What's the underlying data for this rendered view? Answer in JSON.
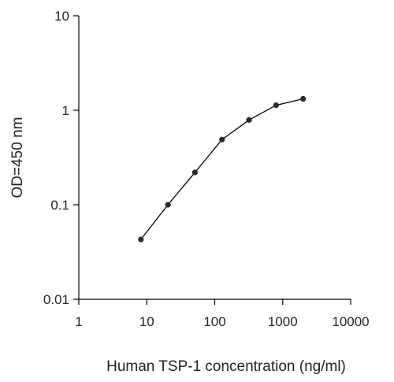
{
  "chart_data": {
    "type": "line",
    "xlabel": "Human TSP-1 concentration (ng/ml)",
    "ylabel": "OD=450 nm",
    "xscale": "log",
    "yscale": "log",
    "xlim": [
      1,
      10000
    ],
    "ylim": [
      0.01,
      10
    ],
    "x_ticks": [
      {
        "value": 1,
        "label": "1"
      },
      {
        "value": 10,
        "label": "10"
      },
      {
        "value": 100,
        "label": "100"
      },
      {
        "value": 1000,
        "label": "1000"
      },
      {
        "value": 10000,
        "label": "10000"
      }
    ],
    "y_ticks": [
      {
        "value": 0.01,
        "label": "0.01"
      },
      {
        "value": 0.1,
        "label": "0.1"
      },
      {
        "value": 1,
        "label": "1"
      },
      {
        "value": 10,
        "label": "10"
      }
    ],
    "grid": false,
    "colors": {
      "line": "#000000",
      "marker": "#2a2a2a",
      "axis": "#000000"
    },
    "series": [
      {
        "x": [
          8.2,
          20.5,
          51.2,
          128,
          320,
          800,
          2000
        ],
        "y": [
          0.043,
          0.1,
          0.22,
          0.49,
          0.79,
          1.13,
          1.32
        ]
      }
    ]
  }
}
